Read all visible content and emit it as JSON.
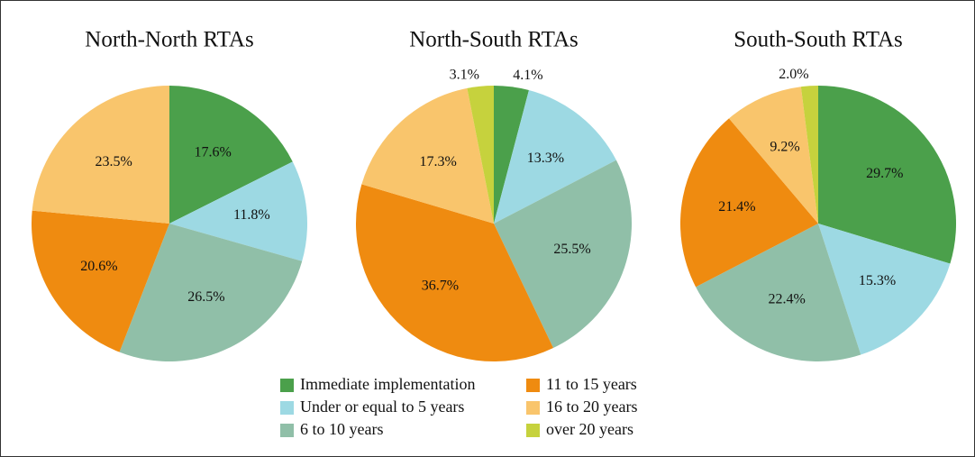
{
  "chart_data": [
    {
      "type": "pie",
      "title": "North-North RTAs",
      "values": [
        17.6,
        11.8,
        26.5,
        20.6,
        23.5,
        null
      ],
      "value_labels": [
        "17.6%",
        "11.8%",
        "26.5%",
        "20.6%",
        "23.5%",
        null
      ]
    },
    {
      "type": "pie",
      "title": "North-South RTAs",
      "values": [
        4.1,
        13.3,
        25.5,
        36.7,
        17.3,
        3.1
      ],
      "value_labels": [
        "4.1%",
        "13.3%",
        "25.5%",
        "36.7%",
        "17.3%",
        "3.1%"
      ]
    },
    {
      "type": "pie",
      "title": "South-South RTAs",
      "values": [
        29.7,
        15.3,
        22.4,
        21.4,
        9.2,
        2.0
      ],
      "value_labels": [
        "29.7%",
        "15.3%",
        "22.4%",
        "21.4%",
        "9.2%",
        "2.0%"
      ]
    }
  ],
  "legend": {
    "categories": [
      "Immediate implementation",
      "Under or equal to 5 years",
      "6 to 10 years",
      "11 to 15 years",
      "16 to 20 years",
      "over 20 years"
    ],
    "colors": [
      "#4ba04b",
      "#9dd9e3",
      "#90bfa8",
      "#ef8b10",
      "#f9c56c",
      "#c6d23d"
    ]
  }
}
